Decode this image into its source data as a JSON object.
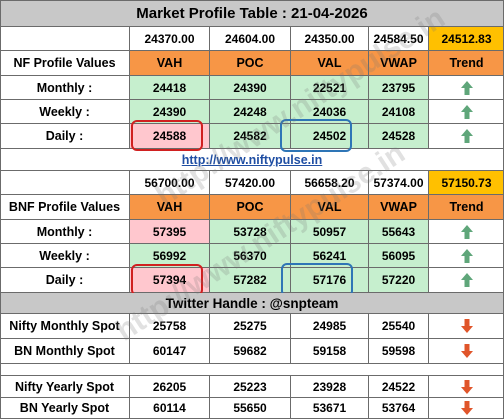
{
  "title": "Market Profile Table : 21-04-2026",
  "nf": {
    "levels": [
      "24370.00",
      "24604.00",
      "24350.00",
      "24584.50"
    ],
    "spot": "24512.83",
    "label": "NF Profile Values",
    "headers": [
      "VAH",
      "POC",
      "VAL",
      "VWAP",
      "Trend"
    ],
    "rows": [
      {
        "label": "Monthly :",
        "values": [
          "24418",
          "24390",
          "22521",
          "23795"
        ],
        "trend": "up"
      },
      {
        "label": "Weekly :",
        "values": [
          "24390",
          "24248",
          "24036",
          "24108"
        ],
        "trend": "up"
      },
      {
        "label": "Daily :",
        "values": [
          "24588",
          "24582",
          "24502",
          "24528"
        ],
        "trend": "up"
      }
    ]
  },
  "link_text": "http://www.niftypulse.in",
  "bnf": {
    "levels": [
      "56700.00",
      "57420.00",
      "56658.20",
      "57374.00"
    ],
    "spot": "57150.73",
    "label": "BNF Profile Values",
    "headers": [
      "VAH",
      "POC",
      "VAL",
      "VWAP",
      "Trend"
    ],
    "rows": [
      {
        "label": "Monthly :",
        "values": [
          "57395",
          "53728",
          "50957",
          "55643"
        ],
        "trend": "up"
      },
      {
        "label": "Weekly :",
        "values": [
          "56992",
          "56370",
          "56241",
          "56095"
        ],
        "trend": "up"
      },
      {
        "label": "Daily :",
        "values": [
          "57394",
          "57282",
          "57176",
          "57220"
        ],
        "trend": "up"
      }
    ]
  },
  "twitter": "Twitter Handle : @snpteam",
  "spots": [
    {
      "label": "Nifty Monthly Spot",
      "values": [
        "25758",
        "25275",
        "24985",
        "25540"
      ],
      "trend": "down"
    },
    {
      "label": "BN Monthly Spot",
      "values": [
        "60147",
        "59682",
        "59158",
        "59598"
      ],
      "trend": "down"
    },
    {
      "label": "Nifty Yearly Spot",
      "values": [
        "26205",
        "25223",
        "23928",
        "24522"
      ],
      "trend": "down"
    },
    {
      "label": "BN Yearly Spot",
      "values": [
        "60114",
        "55650",
        "53671",
        "53764"
      ],
      "trend": "down"
    }
  ],
  "watermark": "http://www.niftypulse.in",
  "colors": {
    "header": "#f79646",
    "spot": "#ffc000",
    "green_fill": "#c6efce",
    "pink_fill": "#ffc7ce",
    "up_arrow": "#5fa67a",
    "down_arrow": "#e0552a"
  }
}
